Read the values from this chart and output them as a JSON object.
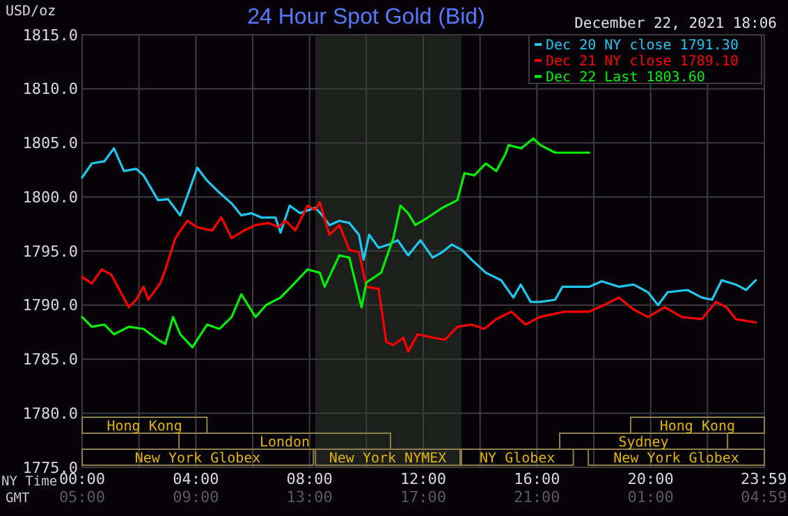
{
  "chart_data": {
    "type": "line",
    "title": "24 Hour Spot Gold (Bid)",
    "ylabel": "USD/oz",
    "xlabel": "NY Time",
    "x2label": "GMT",
    "annotations": [
      "December 22, 2021 18:06",
      "New York Globex",
      "New York NYMEX",
      "NY Globex",
      "New York Globex",
      "London",
      "Sydney",
      "Hong Kong",
      "Hong Kong"
    ],
    "xlim": [
      0,
      24
    ],
    "xticks": [
      {
        "value": 0,
        "label": "00:00"
      },
      {
        "value": 4,
        "label": "04:00"
      },
      {
        "value": 8,
        "label": "08:00"
      },
      {
        "value": 12,
        "label": "12:00"
      },
      {
        "value": 16,
        "label": "16:00"
      },
      {
        "value": 20,
        "label": "20:00"
      },
      {
        "value": 23.98,
        "label": "23:59"
      }
    ],
    "x2lim": [
      "2021-12-22T05:00",
      "2021-12-23T05:00"
    ],
    "x2ticks": [
      {
        "value": "2021-12-22T05:00",
        "label": "05:00"
      },
      {
        "value": "2021-12-22T09:00",
        "label": "09:00"
      },
      {
        "value": "2021-12-22T13:00",
        "label": "13:00"
      },
      {
        "value": "2021-12-22T17:00",
        "label": "17:00"
      },
      {
        "value": "2021-12-22T21:00",
        "label": "21:00"
      },
      {
        "value": "2021-12-23T01:00",
        "label": "01:00"
      },
      {
        "value": "2021-12-23T04:59",
        "label": "04:59"
      }
    ],
    "ylim": [
      1775,
      1815
    ],
    "yticks": [
      {
        "value": 1775,
        "label": "1775.0"
      },
      {
        "value": 1780,
        "label": "1780.0"
      },
      {
        "value": 1785,
        "label": "1785.0"
      },
      {
        "value": 1790,
        "label": "1790.0"
      },
      {
        "value": 1795,
        "label": "1795.0"
      },
      {
        "value": 1800,
        "label": "1800.0"
      },
      {
        "value": 1805,
        "label": "1805.0"
      },
      {
        "value": 1810,
        "label": "1810.0"
      },
      {
        "value": 1815,
        "label": "1815.0"
      }
    ],
    "grid": true,
    "legend": "top right",
    "line_style": "solid",
    "marker": "none",
    "bands": [
      {
        "axis": "x",
        "from": 8.2,
        "to": 13.35,
        "color": "#1c1f1c"
      }
    ],
    "series": [
      {
        "name": "Dec 20 NY close 1791.30",
        "color": "#1ec8f0",
        "x": [
          0,
          0.34,
          0.78,
          1.12,
          1.47,
          1.9,
          2.16,
          2.67,
          3.02,
          3.45,
          3.7,
          4.05,
          4.4,
          4.83,
          5.26,
          5.6,
          5.95,
          6.3,
          6.8,
          6.98,
          7.3,
          7.67,
          8.2,
          8.45,
          8.7,
          9.05,
          9.4,
          9.74,
          9.9,
          10.1,
          10.43,
          10.78,
          11.1,
          11.47,
          11.9,
          12.33,
          12.67,
          13.0,
          13.36,
          13.7,
          14.2,
          14.74,
          15.17,
          15.43,
          15.78,
          16.12,
          16.64,
          16.9,
          17.84,
          18.28,
          18.88,
          19.4,
          19.9,
          20.26,
          20.6,
          21.3,
          21.8,
          22.16,
          22.5,
          23.0,
          23.36,
          23.7
        ],
        "values": [
          1801.8,
          1803.1,
          1803.3,
          1804.5,
          1802.4,
          1802.6,
          1802.0,
          1799.7,
          1799.8,
          1798.3,
          1800.1,
          1802.7,
          1801.5,
          1800.4,
          1799.4,
          1798.3,
          1798.5,
          1798.1,
          1798.1,
          1796.7,
          1799.2,
          1798.5,
          1799.0,
          1798.3,
          1797.4,
          1797.8,
          1797.6,
          1796.5,
          1794.2,
          1796.5,
          1795.3,
          1795.6,
          1796.0,
          1794.6,
          1796.0,
          1794.4,
          1794.9,
          1795.6,
          1795.1,
          1794.2,
          1793.0,
          1792.3,
          1790.7,
          1791.9,
          1790.3,
          1790.3,
          1790.5,
          1791.7,
          1791.7,
          1792.2,
          1791.7,
          1791.9,
          1791.2,
          1790.0,
          1791.2,
          1791.4,
          1790.7,
          1790.5,
          1792.3,
          1791.9,
          1791.4,
          1792.3
        ]
      },
      {
        "name": "Dec 21 NY close 1789.10",
        "color": "#ff0000",
        "x": [
          0,
          0.34,
          0.69,
          1.03,
          1.64,
          1.9,
          2.16,
          2.33,
          2.76,
          2.93,
          3.28,
          3.7,
          4.05,
          4.57,
          4.9,
          5.26,
          5.7,
          6.1,
          6.55,
          6.9,
          7.16,
          7.5,
          7.93,
          8.2,
          8.36,
          8.7,
          9.05,
          9.4,
          9.74,
          10.0,
          10.43,
          10.7,
          10.95,
          11.3,
          11.47,
          11.8,
          12.33,
          12.76,
          13.2,
          13.7,
          14.14,
          14.57,
          15.1,
          15.6,
          16.1,
          16.98,
          17.84,
          18.36,
          18.88,
          19.4,
          19.9,
          20.5,
          21.1,
          21.8,
          22.3,
          22.67,
          23.0,
          23.7
        ],
        "values": [
          1792.6,
          1792.0,
          1793.3,
          1792.8,
          1789.8,
          1790.5,
          1791.7,
          1790.5,
          1792.1,
          1793.3,
          1796.2,
          1797.8,
          1797.2,
          1796.9,
          1798.1,
          1796.2,
          1796.9,
          1797.4,
          1797.6,
          1797.2,
          1797.8,
          1796.9,
          1799.2,
          1798.8,
          1799.5,
          1796.5,
          1797.4,
          1795.1,
          1794.9,
          1791.7,
          1791.5,
          1786.6,
          1786.3,
          1787.0,
          1785.7,
          1787.3,
          1787.0,
          1786.8,
          1788.0,
          1788.2,
          1787.8,
          1788.7,
          1789.4,
          1788.2,
          1788.9,
          1789.4,
          1789.4,
          1790.0,
          1790.7,
          1789.6,
          1788.9,
          1789.8,
          1788.9,
          1788.7,
          1790.3,
          1789.8,
          1788.7,
          1788.4
        ]
      },
      {
        "name": "Dec 22 Last 1803.60",
        "color": "#00f000",
        "x": [
          0,
          0.34,
          0.78,
          1.12,
          1.64,
          2.16,
          2.67,
          2.93,
          3.2,
          3.45,
          3.88,
          4.4,
          4.83,
          5.26,
          5.6,
          6.1,
          6.47,
          6.98,
          7.5,
          7.93,
          8.36,
          8.53,
          9.05,
          9.4,
          9.83,
          10.0,
          10.52,
          10.95,
          11.2,
          11.47,
          11.72,
          12.16,
          12.67,
          13.2,
          13.45,
          13.8,
          14.2,
          14.57,
          14.9,
          15.0,
          15.45,
          15.87,
          16.12,
          16.64,
          17.84
        ],
        "values": [
          1788.9,
          1788.0,
          1788.2,
          1787.3,
          1788.0,
          1787.8,
          1786.8,
          1786.4,
          1788.9,
          1787.3,
          1786.1,
          1788.2,
          1787.8,
          1788.9,
          1791.0,
          1788.9,
          1790.0,
          1790.7,
          1792.1,
          1793.3,
          1793.0,
          1791.7,
          1794.6,
          1794.4,
          1789.8,
          1792.1,
          1793.0,
          1796.2,
          1799.2,
          1798.5,
          1797.4,
          1798.1,
          1799.0,
          1799.7,
          1802.2,
          1802.0,
          1803.1,
          1802.4,
          1804.0,
          1804.8,
          1804.5,
          1805.4,
          1804.8,
          1804.1,
          1804.1
        ]
      }
    ]
  }
}
